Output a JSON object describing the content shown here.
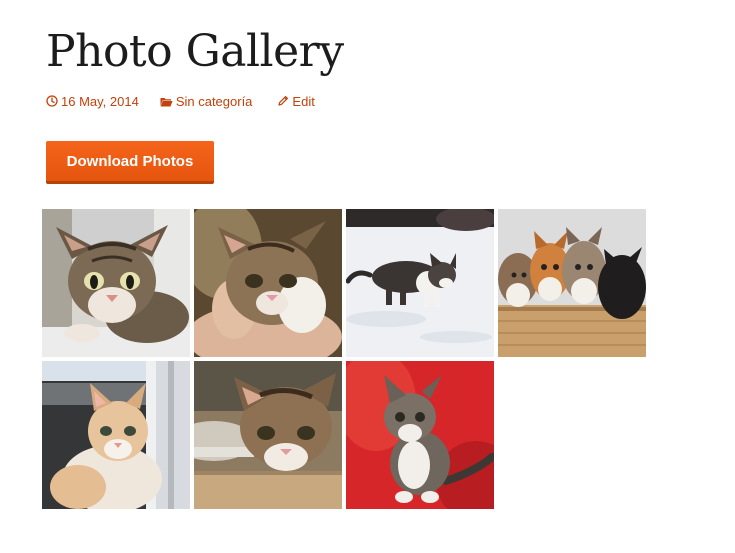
{
  "page": {
    "title": "Photo Gallery"
  },
  "meta": {
    "date": "16 May, 2014",
    "category": "Sin categoría",
    "edit": "Edit",
    "accent_color": "#c2410c"
  },
  "actions": {
    "download_label": "Download Photos",
    "button_color": "#ef5d14"
  },
  "gallery": {
    "photos": [
      {
        "subject": "tabby kitten on windowsill",
        "background": "#d9d6cf"
      },
      {
        "subject": "tabby-white kitten held in hand",
        "background": "#4b3a2a"
      },
      {
        "subject": "kitten walking in snow",
        "background": "#eef0f4"
      },
      {
        "subject": "four kittens in a wicker basket",
        "background": "#dcdcdc"
      },
      {
        "subject": "ginger-white kitten by a door",
        "background": "#b7c6d4"
      },
      {
        "subject": "tabby kitten peeking over an edge",
        "background": "#8c7b61"
      },
      {
        "subject": "fluffy kitten on red cushion",
        "background": "#d6262a"
      }
    ]
  }
}
